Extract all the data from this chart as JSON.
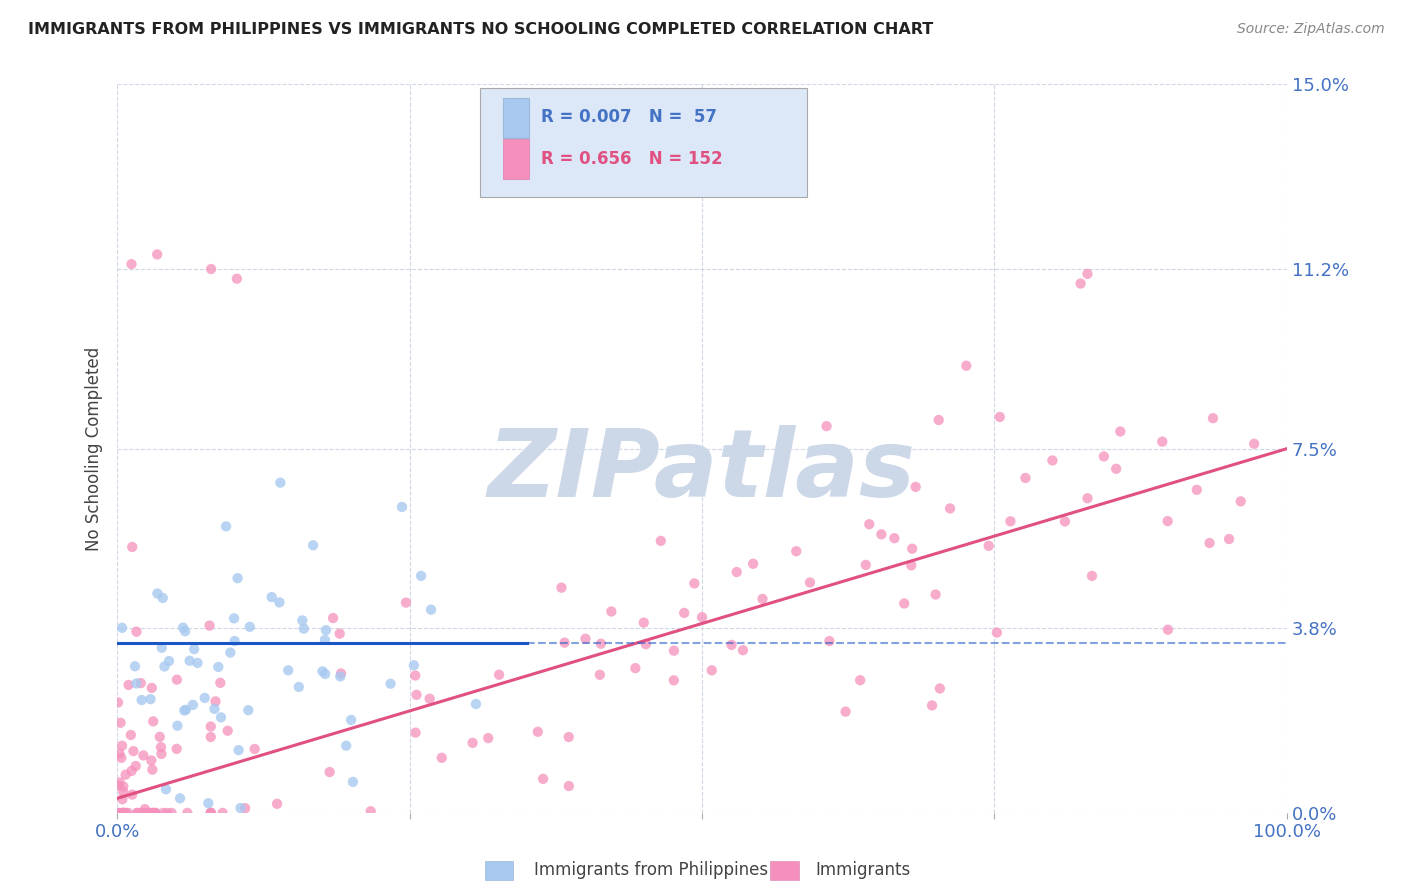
{
  "title": "IMMIGRANTS FROM PHILIPPINES VS IMMIGRANTS NO SCHOOLING COMPLETED CORRELATION CHART",
  "source": "Source: ZipAtlas.com",
  "ylabel": "No Schooling Completed",
  "yticks": [
    0.0,
    3.8,
    7.5,
    11.2,
    15.0
  ],
  "xlim": [
    0.0,
    100.0
  ],
  "ylim": [
    0.0,
    15.0
  ],
  "series1": {
    "label": "Immigrants from Philippines",
    "R": 0.007,
    "N": 57,
    "color": "#a8c8f0",
    "trend_color": "#1a56c4",
    "trend_style": "solid"
  },
  "series2": {
    "label": "Immigrants",
    "R": 0.656,
    "N": 152,
    "color": "#f590bc",
    "trend_color": "#e05080",
    "trend_style": "solid"
  },
  "background_color": "#ffffff",
  "grid_color": "#d0d8e8",
  "watermark": "ZIPatlas",
  "watermark_color": "#ccd8e8",
  "title_color": "#222222",
  "axis_label_color": "#444444",
  "tick_color": "#4472c4",
  "legend_box_color": "#dce8f8",
  "source_color": "#888888"
}
